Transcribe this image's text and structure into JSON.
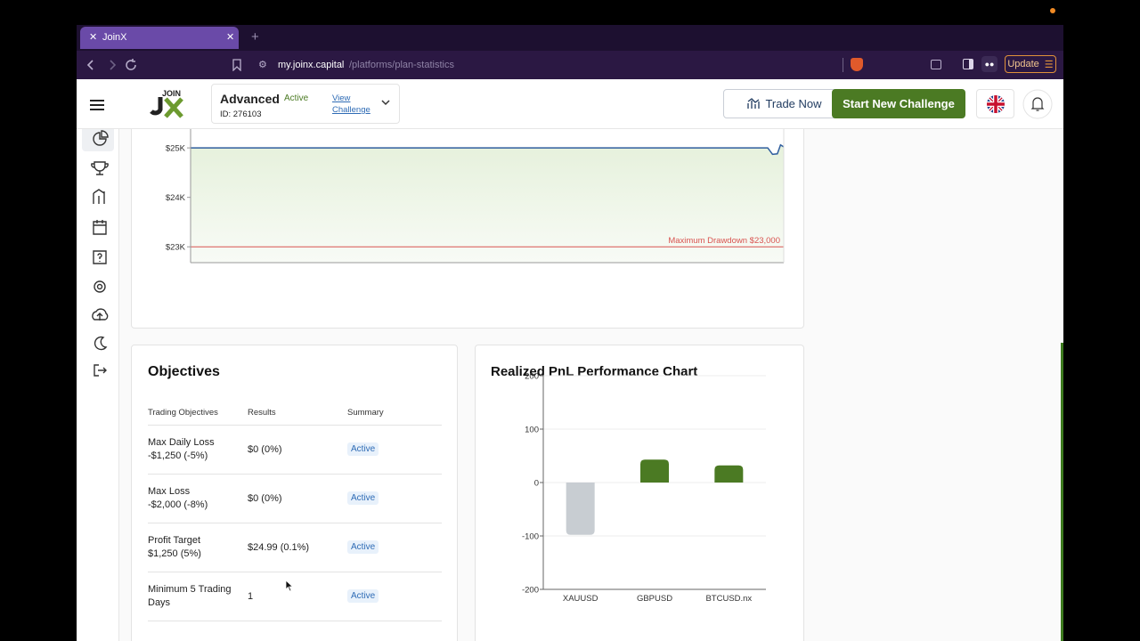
{
  "browser": {
    "tab_title": "JoinX",
    "url_host": "my.joinx.capital",
    "url_path": "/platforms/plan-statistics",
    "update_button": "Update"
  },
  "header": {
    "logo": "JOIN",
    "plan_name": "Advanced",
    "plan_status": "Active",
    "view_link": "View Challenge",
    "plan_id": "ID: 276103",
    "trade_button": "Trade Now",
    "new_challenge_button": "Start New Challenge"
  },
  "objectives": {
    "title": "Objectives",
    "columns": [
      "Trading Objectives",
      "Results",
      "Summary"
    ],
    "rows": [
      {
        "objective": "Max Daily Loss",
        "detail": "-$1,250 (-5%)",
        "result": "$0 (0%)",
        "summary": "Active"
      },
      {
        "objective": "Max Loss",
        "detail": "-$2,000 (-8%)",
        "result": "$0 (0%)",
        "summary": "Active"
      },
      {
        "objective": "Profit Target",
        "detail": "$1,250 (5%)",
        "result": "$24.99 (0.1%)",
        "summary": "Active"
      },
      {
        "objective": "Minimum 5 Trading Days",
        "result": "1",
        "summary": "Active"
      }
    ]
  },
  "chart_data": [
    {
      "type": "line",
      "x": [
        0,
        36,
        36.3,
        36.6,
        36.8,
        37
      ],
      "values": [
        25000,
        25000,
        24870,
        24880,
        25060,
        25020
      ],
      "color": "#2f5d9e",
      "xlim": [
        0,
        37
      ],
      "ylim": [
        22680,
        25380
      ],
      "yticks": [
        {
          "value": 25000,
          "label": "$25K"
        },
        {
          "value": 24000,
          "label": "$24K"
        },
        {
          "value": 23000,
          "label": "$23K"
        }
      ],
      "drawdown": 23000,
      "drawdown_color": "#d9534f",
      "annotation": "Maximum Drawdown $23,000"
    },
    {
      "type": "bar",
      "title": "Realized PnL Performance Chart",
      "categories": [
        "XAUUSD",
        "GBPUSD",
        "BTCUSD.nx"
      ],
      "values": [
        -98,
        43,
        32
      ],
      "colors": [
        "#c8cdd2",
        "#4b7a23",
        "#4b7a23"
      ],
      "ylim": [
        -200,
        200
      ],
      "yticks": [
        200,
        100,
        0,
        -100,
        -200
      ],
      "grid": true
    }
  ]
}
